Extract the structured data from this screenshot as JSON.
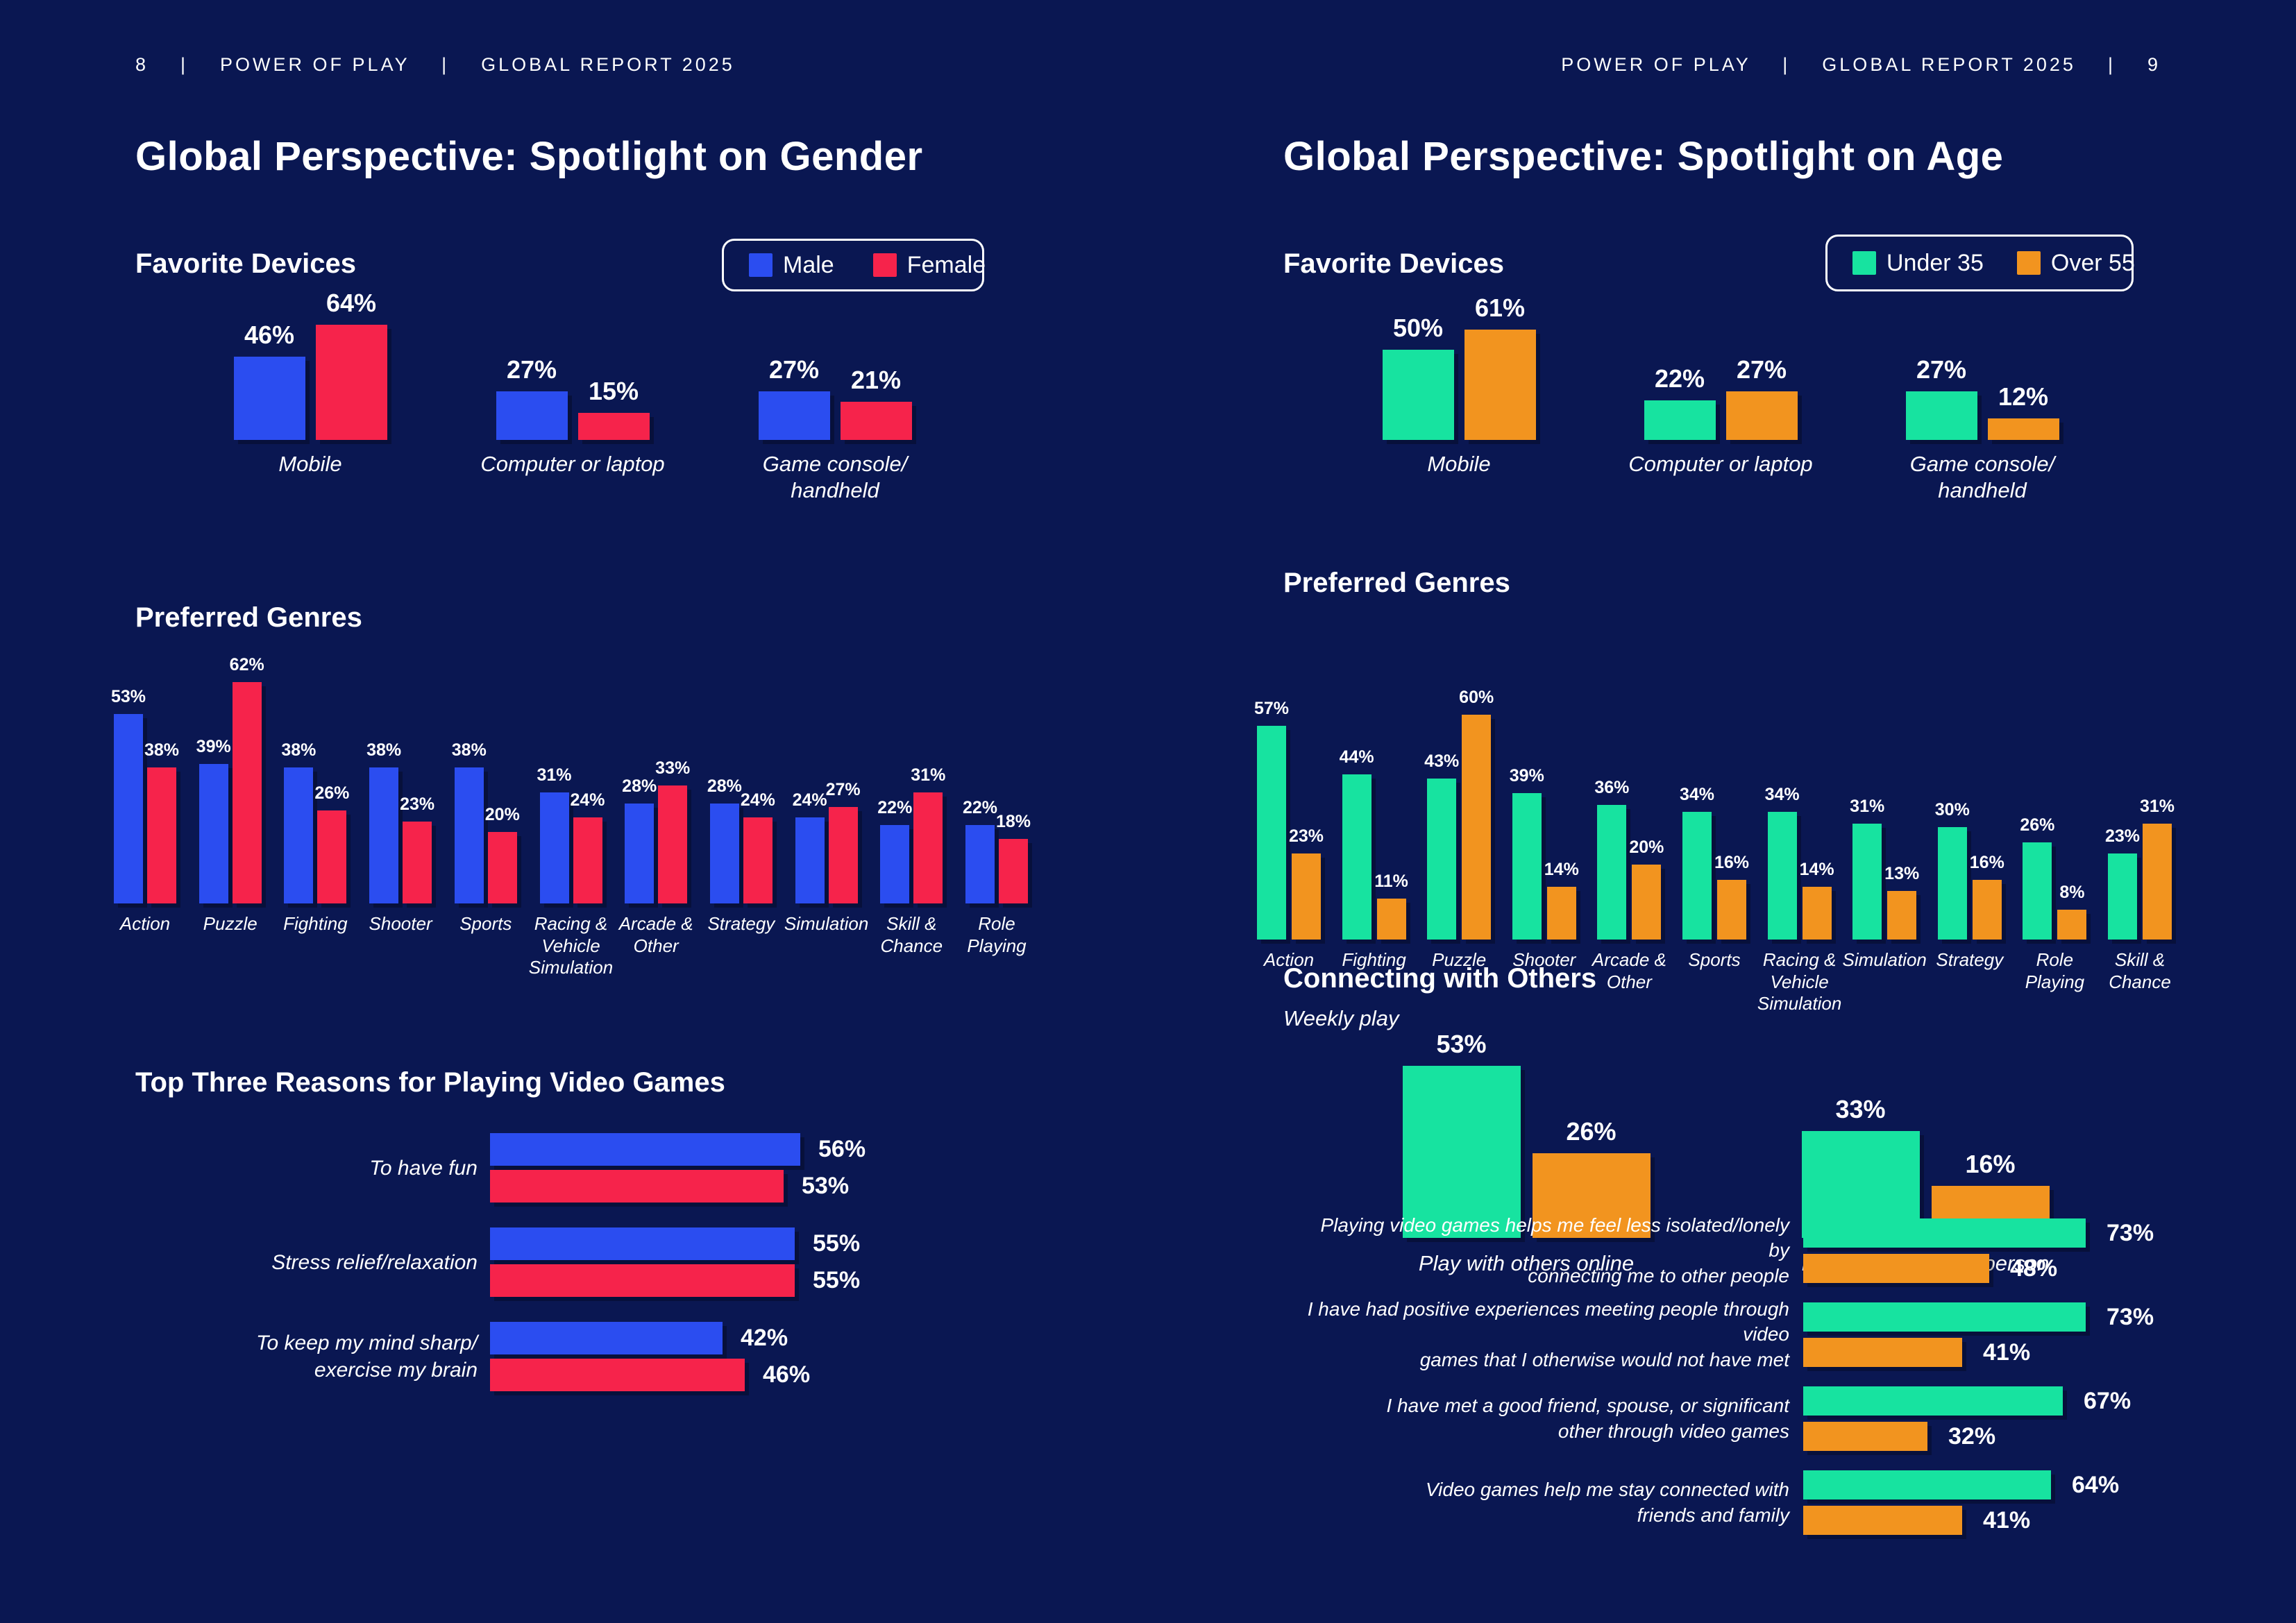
{
  "theme": {
    "background": "#0A1752",
    "blue": "#2B4DF0",
    "red": "#F6234B",
    "green": "#17E3A0",
    "orange": "#F2941F",
    "text": "#FFFFFF"
  },
  "left_page": {
    "header": "8    |    POWER OF PLAY    |    GLOBAL REPORT 2025",
    "title": "Global Perspective: Spotlight on Gender",
    "sections": {
      "devices": "Favorite Devices",
      "genres": "Preferred Genres",
      "reasons": "Top Three Reasons for Playing Video Games"
    },
    "legend": [
      {
        "label": "Male",
        "color": "blue"
      },
      {
        "label": "Female",
        "color": "red"
      }
    ]
  },
  "right_page": {
    "header": "POWER OF PLAY    |    GLOBAL REPORT 2025    |    9",
    "title": "Global Perspective: Spotlight on Age",
    "sections": {
      "devices": "Favorite Devices",
      "genres": "Preferred Genres",
      "connecting": "Connecting with Others",
      "weekly": "Weekly play"
    },
    "legend": [
      {
        "label": "Under 35",
        "color": "green"
      },
      {
        "label": "Over 55",
        "color": "orange"
      }
    ]
  },
  "chart_data": [
    {
      "id": "gender_devices",
      "type": "bar",
      "title": "Favorite Devices",
      "value_unit": "%",
      "legend_position": "top-right",
      "categories": [
        "Mobile",
        "Computer or laptop",
        "Game console/\nhandheld"
      ],
      "series": [
        {
          "name": "Male",
          "color": "blue",
          "values": [
            46,
            27,
            27
          ]
        },
        {
          "name": "Female",
          "color": "red",
          "values": [
            64,
            15,
            21
          ]
        }
      ]
    },
    {
      "id": "gender_genres",
      "type": "bar",
      "title": "Preferred Genres",
      "value_unit": "%",
      "categories": [
        "Action",
        "Puzzle",
        "Fighting",
        "Shooter",
        "Sports",
        "Racing &\nVehicle\nSimulation",
        "Arcade &\nOther",
        "Strategy",
        "Simulation",
        "Skill &\nChance",
        "Role\nPlaying"
      ],
      "series": [
        {
          "name": "Male",
          "color": "blue",
          "values": [
            53,
            39,
            38,
            38,
            38,
            31,
            28,
            28,
            24,
            22,
            22
          ]
        },
        {
          "name": "Female",
          "color": "red",
          "values": [
            38,
            62,
            26,
            23,
            20,
            24,
            33,
            24,
            27,
            31,
            18
          ]
        }
      ]
    },
    {
      "id": "gender_reasons",
      "type": "hbar",
      "title": "Top Three Reasons for Playing Video Games",
      "value_unit": "%",
      "categories": [
        "To have fun",
        "Stress relief/relaxation",
        "To keep my mind sharp/\nexercise my brain"
      ],
      "series": [
        {
          "name": "Male",
          "color": "blue",
          "values": [
            56,
            55,
            42
          ]
        },
        {
          "name": "Female",
          "color": "red",
          "values": [
            53,
            55,
            46
          ]
        }
      ]
    },
    {
      "id": "age_devices",
      "type": "bar",
      "title": "Favorite Devices",
      "value_unit": "%",
      "legend_position": "top-right",
      "categories": [
        "Mobile",
        "Computer or laptop",
        "Game console/\nhandheld"
      ],
      "series": [
        {
          "name": "Under 35",
          "color": "green",
          "values": [
            50,
            22,
            27
          ]
        },
        {
          "name": "Over 55",
          "color": "orange",
          "values": [
            61,
            27,
            12
          ]
        }
      ]
    },
    {
      "id": "age_genres",
      "type": "bar",
      "title": "Preferred Genres",
      "value_unit": "%",
      "categories": [
        "Action",
        "Fighting",
        "Puzzle",
        "Shooter",
        "Arcade &\nOther",
        "Sports",
        "Racing &\nVehicle\nSimulation",
        "Simulation",
        "Strategy",
        "Role\nPlaying",
        "Skill &\nChance"
      ],
      "series": [
        {
          "name": "Under 35",
          "color": "green",
          "values": [
            57,
            44,
            43,
            39,
            36,
            34,
            34,
            31,
            30,
            26,
            23
          ]
        },
        {
          "name": "Over 55",
          "color": "orange",
          "values": [
            23,
            11,
            60,
            14,
            20,
            16,
            14,
            13,
            16,
            8,
            31
          ]
        }
      ]
    },
    {
      "id": "age_weekly",
      "type": "bar",
      "title": "Connecting with Others — Weekly play",
      "value_unit": "%",
      "categories": [
        "Play with others online",
        "Play with others in-person"
      ],
      "series": [
        {
          "name": "Under 35",
          "color": "green",
          "values": [
            53,
            33
          ]
        },
        {
          "name": "Over 55",
          "color": "orange",
          "values": [
            26,
            16
          ]
        }
      ]
    },
    {
      "id": "age_statements",
      "type": "hbar",
      "title": "Connecting with Others — statements",
      "value_unit": "%",
      "categories": [
        "Playing video games helps me feel less isolated/lonely by\nconnecting me to other people",
        "I have had positive experiences meeting people through video\ngames that I otherwise would not have met",
        "I have met a good friend, spouse, or significant\nother through video games",
        "Video games help me stay connected with\nfriends and family"
      ],
      "series": [
        {
          "name": "Under 35",
          "color": "green",
          "values": [
            73,
            73,
            67,
            64
          ]
        },
        {
          "name": "Over 55",
          "color": "orange",
          "values": [
            48,
            41,
            32,
            41
          ]
        }
      ]
    }
  ]
}
